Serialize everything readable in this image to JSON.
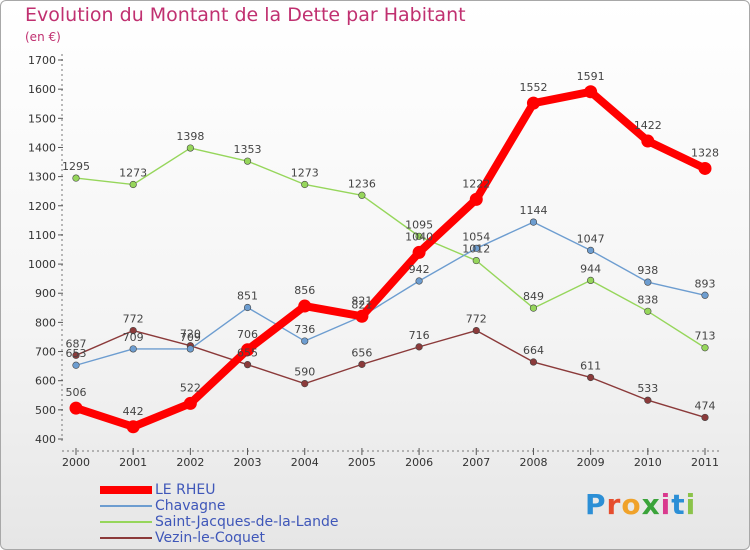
{
  "title": "Evolution du Montant de la Dette par Habitant",
  "subtitle": "(en €)",
  "logo": {
    "text": "Proxiti",
    "letters": [
      "P",
      "r",
      "o",
      "x",
      "i",
      "t",
      "i"
    ],
    "colors": [
      "#2c8fd6",
      "#e64d2e",
      "#f0a22a",
      "#3aa33a",
      "#d93a8e",
      "#2c8fd6",
      "#8bc34a"
    ]
  },
  "chart_data": {
    "type": "line",
    "x": [
      "2000",
      "2001",
      "2002",
      "2003",
      "2004",
      "2005",
      "2006",
      "2007",
      "2008",
      "2009",
      "2010",
      "2011"
    ],
    "ylim": [
      400,
      1700
    ],
    "yticks": [
      "400",
      "500",
      "600",
      "700",
      "800",
      "900",
      "1000",
      "1100",
      "1200",
      "1300",
      "1400",
      "1500",
      "1600",
      "1700"
    ],
    "grid": false,
    "legend_position": "bottom-left",
    "series": [
      {
        "name": "LE RHEU",
        "color": "#ff0000",
        "values": [
          506,
          442,
          522,
          706,
          856,
          821,
          1040,
          1222,
          1552,
          1591,
          1422,
          1328
        ]
      },
      {
        "name": "Chavagne",
        "color": "#6d9dd0",
        "values": [
          653,
          709,
          709,
          851,
          736,
          821,
          942,
          1054,
          1144,
          1047,
          938,
          893
        ]
      },
      {
        "name": "Saint-Jacques-de-la-Lande",
        "color": "#96d65b",
        "values": [
          1295,
          1273,
          1398,
          1353,
          1273,
          1236,
          1095,
          1012,
          849,
          944,
          838,
          713
        ]
      },
      {
        "name": "Vezin-le-Coquet",
        "color": "#8b3a3a",
        "values": [
          687,
          772,
          720,
          655,
          590,
          656,
          716,
          772,
          664,
          611,
          533,
          474
        ]
      }
    ]
  }
}
